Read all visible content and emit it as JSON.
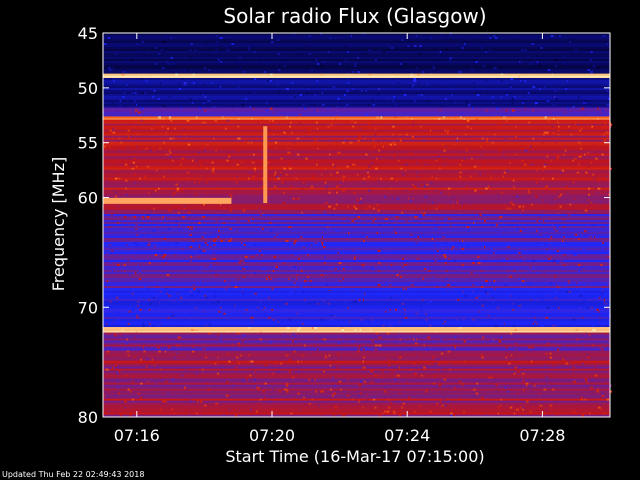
{
  "chart_data": {
    "type": "heatmap",
    "title": "Solar radio Flux (Glasgow)",
    "ylabel": "Frequency [MHz]",
    "xlabel": "Start Time (16-Mar-17 07:15:00)",
    "y_axis": {
      "range": [
        45,
        80
      ],
      "inverted": true,
      "ticks": [
        45,
        50,
        55,
        60,
        70,
        80
      ],
      "tick_labels": [
        "45",
        "50",
        "55",
        "60",
        "70",
        "80"
      ]
    },
    "x_axis": {
      "unit": "minutes after 07:15",
      "range": [
        0.0,
        15.0
      ],
      "ticks": [
        1,
        5,
        9,
        13
      ],
      "tick_labels": [
        "07:16",
        "07:20",
        "07:24",
        "07:28"
      ]
    },
    "colormap": [
      "#000014",
      "#0a0a78",
      "#1e28ff",
      "#c81414",
      "#ff6414",
      "#ffe6aa"
    ],
    "bands": [
      {
        "from": 45.0,
        "to": 48.7,
        "intensity": 0.15
      },
      {
        "from": 48.7,
        "to": 49.1,
        "intensity": 1.0
      },
      {
        "from": 49.1,
        "to": 51.8,
        "intensity": 0.22
      },
      {
        "from": 51.8,
        "to": 52.6,
        "intensity": 0.45
      },
      {
        "from": 52.6,
        "to": 52.9,
        "intensity": 0.85
      },
      {
        "from": 52.9,
        "to": 61.5,
        "intensity": 0.58
      },
      {
        "from": 61.5,
        "to": 68.5,
        "intensity": 0.45
      },
      {
        "from": 68.5,
        "to": 71.8,
        "intensity": 0.4
      },
      {
        "from": 71.8,
        "to": 72.3,
        "intensity": 0.95
      },
      {
        "from": 72.3,
        "to": 74.5,
        "intensity": 0.5
      },
      {
        "from": 74.5,
        "to": 80.0,
        "intensity": 0.55
      }
    ],
    "features": [
      {
        "kind": "burst_lane",
        "freq": 60.3,
        "t_start": 0.0,
        "t_end": 3.8,
        "intensity": 0.9
      },
      {
        "kind": "vertical_spike",
        "t": 4.8,
        "f_start": 53.5,
        "f_end": 60.5,
        "intensity": 0.88
      }
    ]
  },
  "footer": {
    "updated": "Updated Thu Feb 22 02:49:43 2018"
  },
  "colors": {
    "background": "#000000",
    "text": "#ffffff"
  }
}
